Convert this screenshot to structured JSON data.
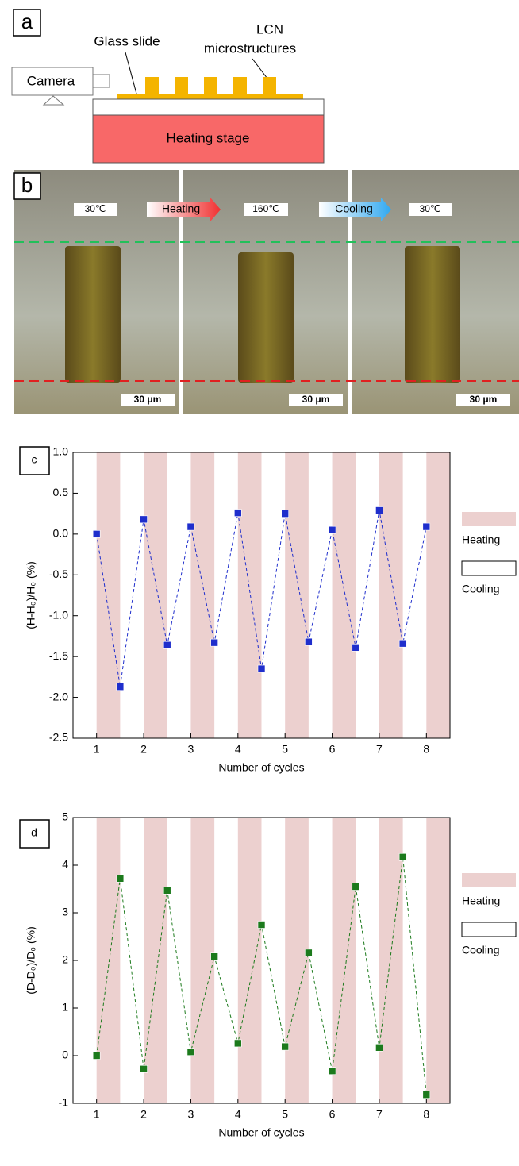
{
  "panel_a": {
    "label": "a",
    "glass_slide": "Glass slide",
    "lcn_line1": "LCN",
    "lcn_line2": "microstructures",
    "camera": "Camera",
    "heating_stage": "Heating stage"
  },
  "panel_b": {
    "label": "b",
    "temp_start": "30℃",
    "heating": "Heating",
    "temp_hot": "160℃",
    "cooling": "Cooling",
    "temp_end": "30℃",
    "scale_bar": "30 μm"
  },
  "chart_data": [
    {
      "type": "line",
      "panel_label": "c",
      "x_label": "Number of cycles",
      "y_label": "(H-H₀)/H₀ (%)",
      "x": [
        1,
        1.5,
        2,
        2.5,
        3,
        3.5,
        4,
        4.5,
        5,
        5.5,
        6,
        6.5,
        7,
        7.5,
        8
      ],
      "series": [
        {
          "color": "#1f2ecc",
          "values": [
            0.0,
            -1.87,
            0.18,
            -1.36,
            0.09,
            -1.33,
            0.26,
            -1.65,
            0.25,
            -1.32,
            0.05,
            -1.39,
            0.29,
            -1.34,
            0.09
          ]
        }
      ],
      "shaded_x_ranges": [
        [
          1,
          1.5
        ],
        [
          2,
          2.5
        ],
        [
          3,
          3.5
        ],
        [
          4,
          4.5
        ],
        [
          5,
          5.5
        ],
        [
          6,
          6.5
        ],
        [
          7,
          7.5
        ],
        [
          8,
          8.5
        ]
      ],
      "xlim": [
        0.5,
        8.5
      ],
      "xticks": [
        1,
        2,
        3,
        4,
        5,
        6,
        7,
        8
      ],
      "ylim": [
        -2.5,
        1
      ],
      "yticks": [
        -2.5,
        {
          "value": -2,
          "label": "-2.0"
        },
        -1.5,
        {
          "value": -1,
          "label": "-1.0"
        },
        -0.5,
        {
          "value": 0,
          "label": "0.0"
        },
        0.5,
        {
          "value": 1,
          "label": "1.0"
        }
      ],
      "legend": [
        {
          "label": "Heating",
          "color": "#ecd0cf"
        },
        {
          "label": "Cooling",
          "color": "#ffffff"
        }
      ]
    },
    {
      "type": "line",
      "panel_label": "d",
      "x_label": "Number of cycles",
      "y_label": "(D-D₀)/D₀ (%)",
      "x": [
        1,
        1.5,
        2,
        2.5,
        3,
        3.5,
        4,
        4.5,
        5,
        5.5,
        6,
        6.5,
        7,
        7.5,
        8
      ],
      "series": [
        {
          "color": "#1c7a1c",
          "values": [
            0,
            3.72,
            -0.28,
            3.47,
            0.08,
            2.08,
            0.26,
            2.75,
            0.19,
            2.16,
            -0.32,
            3.55,
            0.17,
            4.17,
            -0.82
          ]
        }
      ],
      "shaded_x_ranges": [
        [
          1,
          1.5
        ],
        [
          2,
          2.5
        ],
        [
          3,
          3.5
        ],
        [
          4,
          4.5
        ],
        [
          5,
          5.5
        ],
        [
          6,
          6.5
        ],
        [
          7,
          7.5
        ],
        [
          8,
          8.5
        ]
      ],
      "xlim": [
        0.5,
        8.5
      ],
      "xticks": [
        1,
        2,
        3,
        4,
        5,
        6,
        7,
        8
      ],
      "ylim": [
        -1,
        5
      ],
      "yticks": [
        -1,
        0,
        1,
        2,
        3,
        4,
        5
      ],
      "legend": [
        {
          "label": "Heating",
          "color": "#ecd0cf"
        },
        {
          "label": "Cooling",
          "color": "#ffffff"
        }
      ]
    }
  ]
}
